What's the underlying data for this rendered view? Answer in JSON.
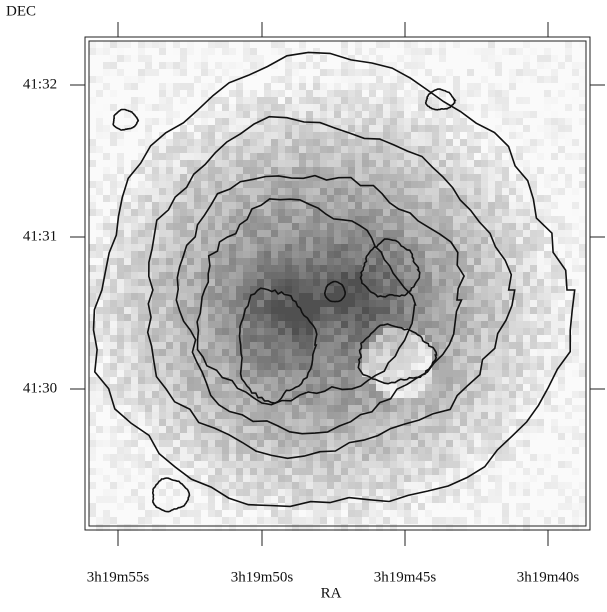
{
  "axes": {
    "x_label": "RA",
    "y_label": "DEC",
    "x_ticks": [
      "3h19m55s",
      "3h19m50s",
      "3h19m45s",
      "3h19m40s"
    ],
    "y_ticks": [
      "41:32",
      "41:31",
      "41:30"
    ]
  }
}
